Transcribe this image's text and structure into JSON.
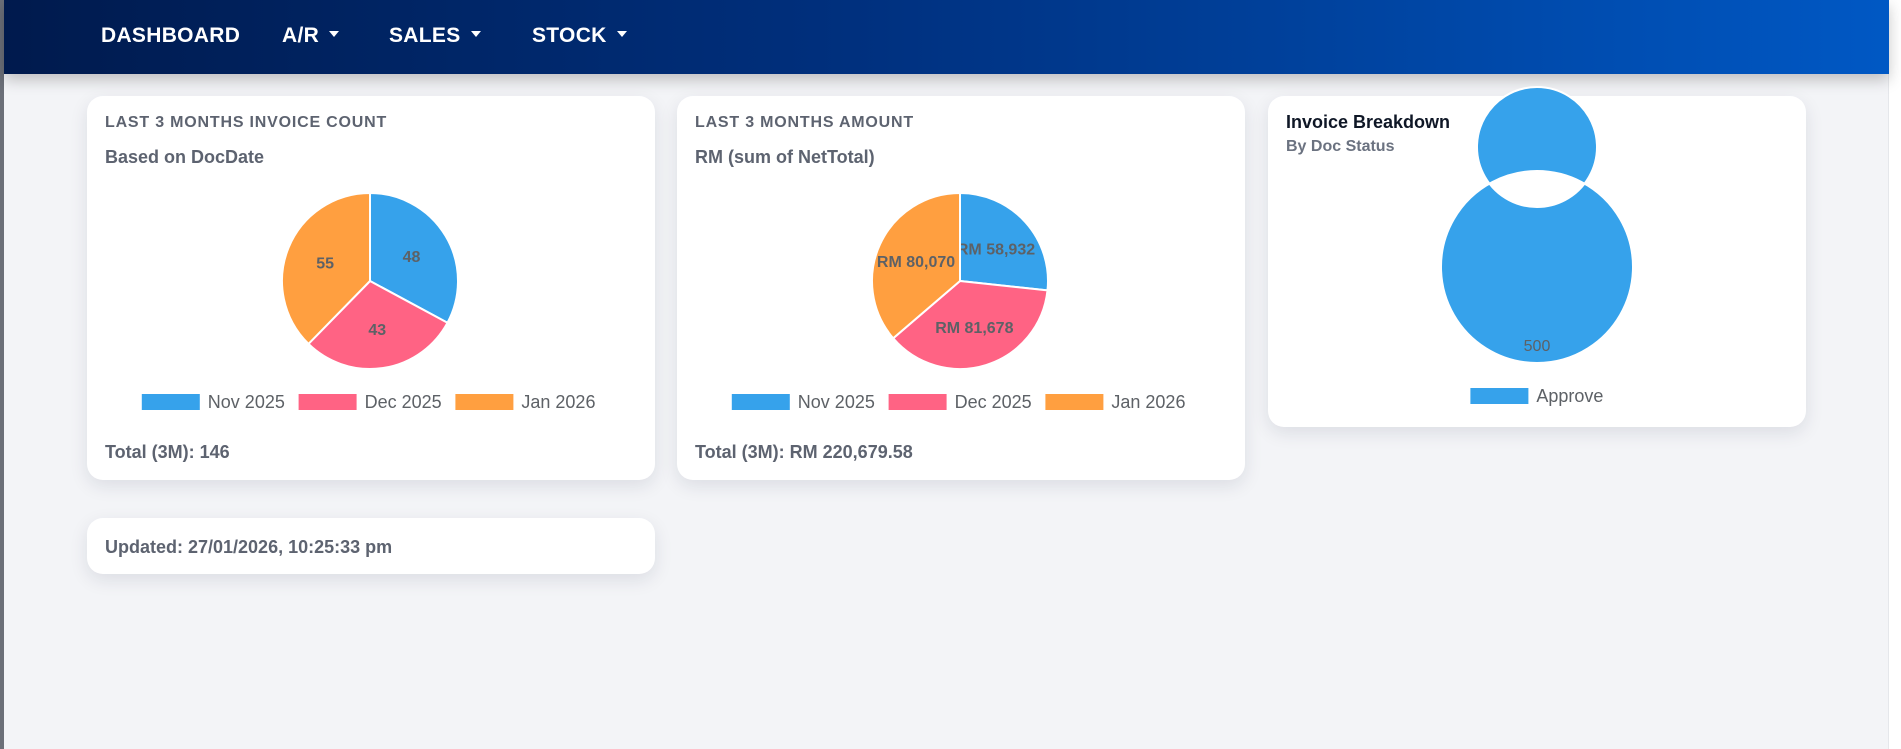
{
  "nav": {
    "items": [
      {
        "label": "DASHBOARD",
        "dropdown": false
      },
      {
        "label": "A/R",
        "dropdown": true
      },
      {
        "label": "SALES",
        "dropdown": true
      },
      {
        "label": "STOCK",
        "dropdown": true
      }
    ]
  },
  "cards": {
    "invoice_count": {
      "title": "LAST 3 MONTHS INVOICE COUNT",
      "subtitle": "Based on DocDate",
      "total": "Total (3M): 146"
    },
    "amount": {
      "title": "LAST 3 MONTHS AMOUNT",
      "subtitle": "RM (sum of NetTotal)",
      "total": "Total (3M): RM 220,679.58"
    },
    "breakdown": {
      "title": "Invoice Breakdown",
      "subtitle": "By Doc Status"
    },
    "updated": {
      "text": "Updated: 27/01/2026, 10:25:33 pm"
    }
  },
  "colors": {
    "blue": "#36a2eb",
    "pink": "#ff6384",
    "orange": "#ff9f40"
  },
  "chart_data": [
    {
      "type": "pie",
      "categories": [
        "Nov 2025",
        "Dec 2025",
        "Jan 2026"
      ],
      "values": [
        48,
        43,
        55
      ],
      "labels": [
        "48",
        "43",
        "55"
      ],
      "colors": [
        "#36a2eb",
        "#ff6384",
        "#ff9f40"
      ],
      "legend": "bottom"
    },
    {
      "type": "pie",
      "categories": [
        "Nov 2025",
        "Dec 2025",
        "Jan 2026"
      ],
      "values": [
        58932,
        81678,
        80070
      ],
      "labels": [
        "RM 58,932",
        "RM 81,678",
        "RM 80,070"
      ],
      "colors": [
        "#36a2eb",
        "#ff6384",
        "#ff9f40"
      ],
      "legend": "bottom"
    },
    {
      "type": "pie",
      "categories": [
        "Approve"
      ],
      "values": [
        500
      ],
      "labels": [
        "500"
      ],
      "colors": [
        "#36a2eb"
      ],
      "legend": "bottom"
    }
  ]
}
